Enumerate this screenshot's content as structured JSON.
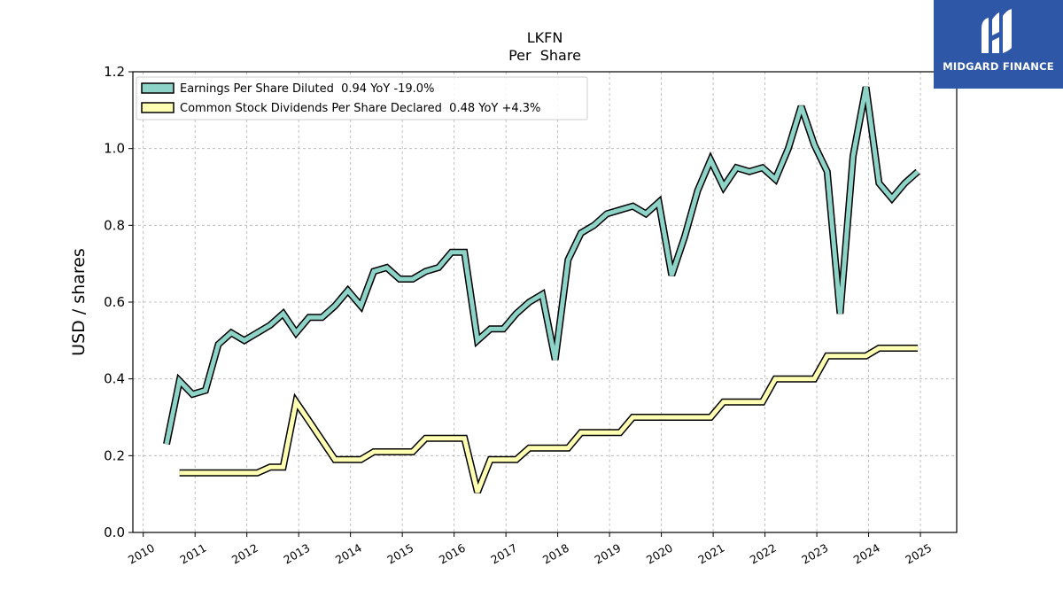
{
  "chart_data": {
    "type": "line",
    "ticker": "LKFN",
    "title": "Per  Share",
    "ylabel": "USD / shares",
    "xlabel": "",
    "ylim": [
      0.0,
      1.2
    ],
    "xlim": [
      2009.8,
      2025.7
    ],
    "yticks": [
      "0.0",
      "0.2",
      "0.4",
      "0.6",
      "0.8",
      "1.0",
      "1.2"
    ],
    "xticks": [
      "2010",
      "2011",
      "2012",
      "2013",
      "2014",
      "2015",
      "2016",
      "2017",
      "2018",
      "2019",
      "2020",
      "2021",
      "2022",
      "2023",
      "2024",
      "2025"
    ],
    "grid": true,
    "legend_position": "top-left",
    "series": [
      {
        "name": "Earnings Per Share Diluted  0.94 YoY -19.0%",
        "color": "#8dd3c7",
        "x": [
          2010.45,
          2010.7,
          2010.95,
          2011.2,
          2011.45,
          2011.7,
          2011.95,
          2012.2,
          2012.45,
          2012.7,
          2012.95,
          2013.2,
          2013.45,
          2013.7,
          2013.95,
          2014.2,
          2014.45,
          2014.7,
          2014.95,
          2015.2,
          2015.45,
          2015.7,
          2015.95,
          2016.2,
          2016.45,
          2016.7,
          2016.95,
          2017.2,
          2017.45,
          2017.7,
          2017.95,
          2018.2,
          2018.45,
          2018.7,
          2018.95,
          2019.2,
          2019.45,
          2019.7,
          2019.95,
          2020.2,
          2020.45,
          2020.7,
          2020.95,
          2021.2,
          2021.45,
          2021.7,
          2021.95,
          2022.2,
          2022.45,
          2022.7,
          2022.95,
          2023.2,
          2023.45,
          2023.7,
          2023.95,
          2024.2,
          2024.45,
          2024.7,
          2024.95
        ],
        "values": [
          0.23,
          0.395,
          0.36,
          0.37,
          0.49,
          0.52,
          0.5,
          0.52,
          0.54,
          0.57,
          0.52,
          0.56,
          0.56,
          0.59,
          0.63,
          0.59,
          0.68,
          0.69,
          0.66,
          0.66,
          0.68,
          0.69,
          0.73,
          0.73,
          0.5,
          0.53,
          0.53,
          0.57,
          0.6,
          0.62,
          0.45,
          0.71,
          0.78,
          0.8,
          0.83,
          0.84,
          0.85,
          0.83,
          0.86,
          0.67,
          0.77,
          0.89,
          0.97,
          0.9,
          0.95,
          0.94,
          0.95,
          0.92,
          1.0,
          1.11,
          1.01,
          0.94,
          0.57,
          0.98,
          1.16,
          0.91,
          0.87,
          0.91,
          0.94
        ]
      },
      {
        "name": "Common Stock Dividends Per Share Declared  0.48 YoY +4.3%",
        "color": "#ffffb3",
        "x": [
          2010.7,
          2010.95,
          2011.2,
          2011.45,
          2011.7,
          2011.95,
          2012.2,
          2012.45,
          2012.7,
          2012.95,
          2013.2,
          2013.45,
          2013.7,
          2013.95,
          2014.2,
          2014.45,
          2014.7,
          2014.95,
          2015.2,
          2015.45,
          2015.7,
          2015.95,
          2016.2,
          2016.45,
          2016.7,
          2016.95,
          2017.2,
          2017.45,
          2017.7,
          2017.95,
          2018.2,
          2018.45,
          2018.7,
          2018.95,
          2019.2,
          2019.45,
          2019.7,
          2019.95,
          2020.2,
          2020.45,
          2020.7,
          2020.95,
          2021.2,
          2021.45,
          2021.7,
          2021.95,
          2022.2,
          2022.45,
          2022.7,
          2022.95,
          2023.2,
          2023.45,
          2023.7,
          2023.95,
          2024.2,
          2024.45,
          2024.7,
          2024.95
        ],
        "values": [
          0.155,
          0.155,
          0.155,
          0.155,
          0.155,
          0.155,
          0.155,
          0.17,
          0.17,
          0.34,
          0.29,
          0.24,
          0.19,
          0.19,
          0.19,
          0.21,
          0.21,
          0.21,
          0.21,
          0.245,
          0.245,
          0.245,
          0.245,
          0.105,
          0.19,
          0.19,
          0.19,
          0.22,
          0.22,
          0.22,
          0.22,
          0.26,
          0.26,
          0.26,
          0.26,
          0.3,
          0.3,
          0.3,
          0.3,
          0.3,
          0.3,
          0.3,
          0.34,
          0.34,
          0.34,
          0.34,
          0.4,
          0.4,
          0.4,
          0.4,
          0.46,
          0.46,
          0.46,
          0.46,
          0.48,
          0.48,
          0.48,
          0.48
        ]
      }
    ]
  },
  "brand": {
    "name": "MIDGARD FINANCE",
    "logo_icon": "midgard-logo-icon",
    "background": "#2f57a7"
  }
}
